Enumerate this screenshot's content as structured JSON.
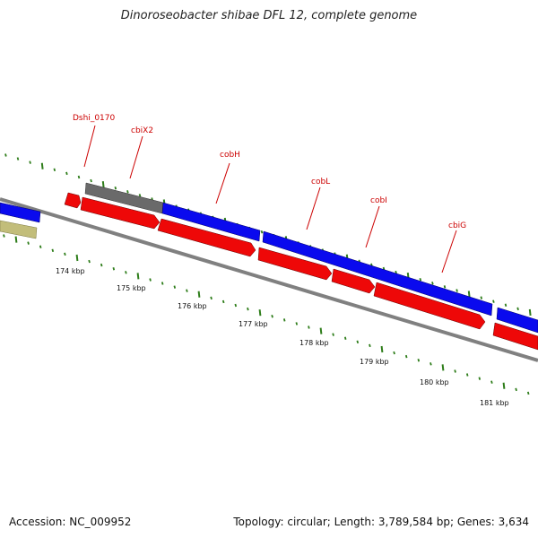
{
  "title": "Dinoroseobacter shibae DFL 12, complete genome",
  "footer": {
    "accession": "Accession: NC_009952",
    "summary": "Topology: circular; Length: 3,789,584 bp; Genes: 3,634"
  },
  "colors": {
    "forward_gene": "#0a0aee",
    "reverse_gene": "#ee0808",
    "pseudo_gene": "#6a6a6a",
    "other_feature": "#c2bd7a",
    "tick": "#2e7d1a",
    "backbone": "#808080",
    "label": "#cc0000"
  },
  "gene_labels": [
    "Dshi_0170",
    "cbiX2",
    "cobH",
    "cobL",
    "cobI",
    "cbiG"
  ],
  "kbp_labels": [
    "174 kbp",
    "175 kbp",
    "176 kbp",
    "177 kbp",
    "178 kbp",
    "179 kbp",
    "180 kbp",
    "181 kbp"
  ]
}
